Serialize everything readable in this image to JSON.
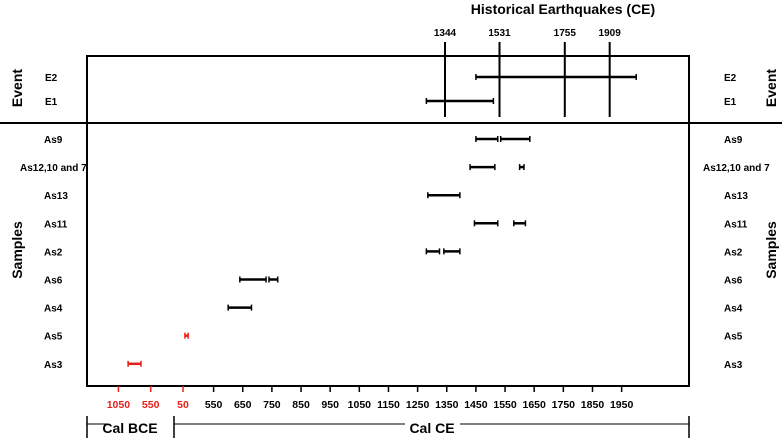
{
  "chart_data": {
    "type": "interval",
    "title": "Historical Earthquakes (CE)",
    "earthquakes": [
      1344,
      1531,
      1755,
      1909
    ],
    "event_axis_label": "Event",
    "samples_axis_label": "Samples",
    "events": [
      {
        "name": "E2",
        "ranges": [
          [
            1450,
            2000
          ]
        ]
      },
      {
        "name": "E1",
        "ranges": [
          [
            1280,
            1510
          ]
        ]
      }
    ],
    "samples": [
      {
        "name": "As9",
        "ranges": [
          [
            1450,
            1525
          ],
          [
            1535,
            1635
          ]
        ],
        "color": "#000000"
      },
      {
        "name": "As12,10 and 7",
        "ranges": [
          [
            1430,
            1515
          ],
          [
            1600,
            1615
          ]
        ],
        "color": "#000000"
      },
      {
        "name": "As13",
        "ranges": [
          [
            1285,
            1395
          ]
        ],
        "color": "#000000"
      },
      {
        "name": "As11",
        "ranges": [
          [
            1445,
            1525
          ],
          [
            1580,
            1620
          ]
        ],
        "color": "#000000"
      },
      {
        "name": "As2",
        "ranges": [
          [
            1280,
            1325
          ],
          [
            1340,
            1395
          ]
        ],
        "color": "#000000"
      },
      {
        "name": "As6",
        "ranges": [
          [
            640,
            730
          ],
          [
            740,
            770
          ]
        ],
        "color": "#000000"
      },
      {
        "name": "As4",
        "ranges": [
          [
            600,
            680
          ]
        ],
        "color": "#000000"
      },
      {
        "name": "As5",
        "ranges": [
          [
            -20,
            30
          ]
        ],
        "color": "#e8201c"
      },
      {
        "name": "As3",
        "ranges": [
          [
            -900,
            -700
          ]
        ],
        "color": "#e8201c"
      }
    ],
    "x_ticks": [
      {
        "label": "1050",
        "value": -1050,
        "color": "#e8201c"
      },
      {
        "label": "550",
        "value": -550,
        "color": "#e8201c"
      },
      {
        "label": "50",
        "value": -50,
        "color": "#e8201c"
      },
      {
        "label": "550",
        "value": 550,
        "color": "#000000"
      },
      {
        "label": "650",
        "value": 650,
        "color": "#000000"
      },
      {
        "label": "750",
        "value": 750,
        "color": "#000000"
      },
      {
        "label": "850",
        "value": 850,
        "color": "#000000"
      },
      {
        "label": "950",
        "value": 950,
        "color": "#000000"
      },
      {
        "label": "1050",
        "value": 1050,
        "color": "#000000"
      },
      {
        "label": "1150",
        "value": 1150,
        "color": "#000000"
      },
      {
        "label": "1250",
        "value": 1250,
        "color": "#000000"
      },
      {
        "label": "1350",
        "value": 1350,
        "color": "#000000"
      },
      {
        "label": "1450",
        "value": 1450,
        "color": "#000000"
      },
      {
        "label": "1550",
        "value": 1550,
        "color": "#000000"
      },
      {
        "label": "1650",
        "value": 1650,
        "color": "#000000"
      },
      {
        "label": "1750",
        "value": 1750,
        "color": "#000000"
      },
      {
        "label": "1850",
        "value": 1850,
        "color": "#000000"
      },
      {
        "label": "1950",
        "value": 1950,
        "color": "#000000"
      }
    ],
    "era_labels": {
      "bce": "Cal BCE",
      "ce": "Cal CE"
    },
    "colors": {
      "bce": "#e8201c",
      "ce": "#000000"
    }
  }
}
